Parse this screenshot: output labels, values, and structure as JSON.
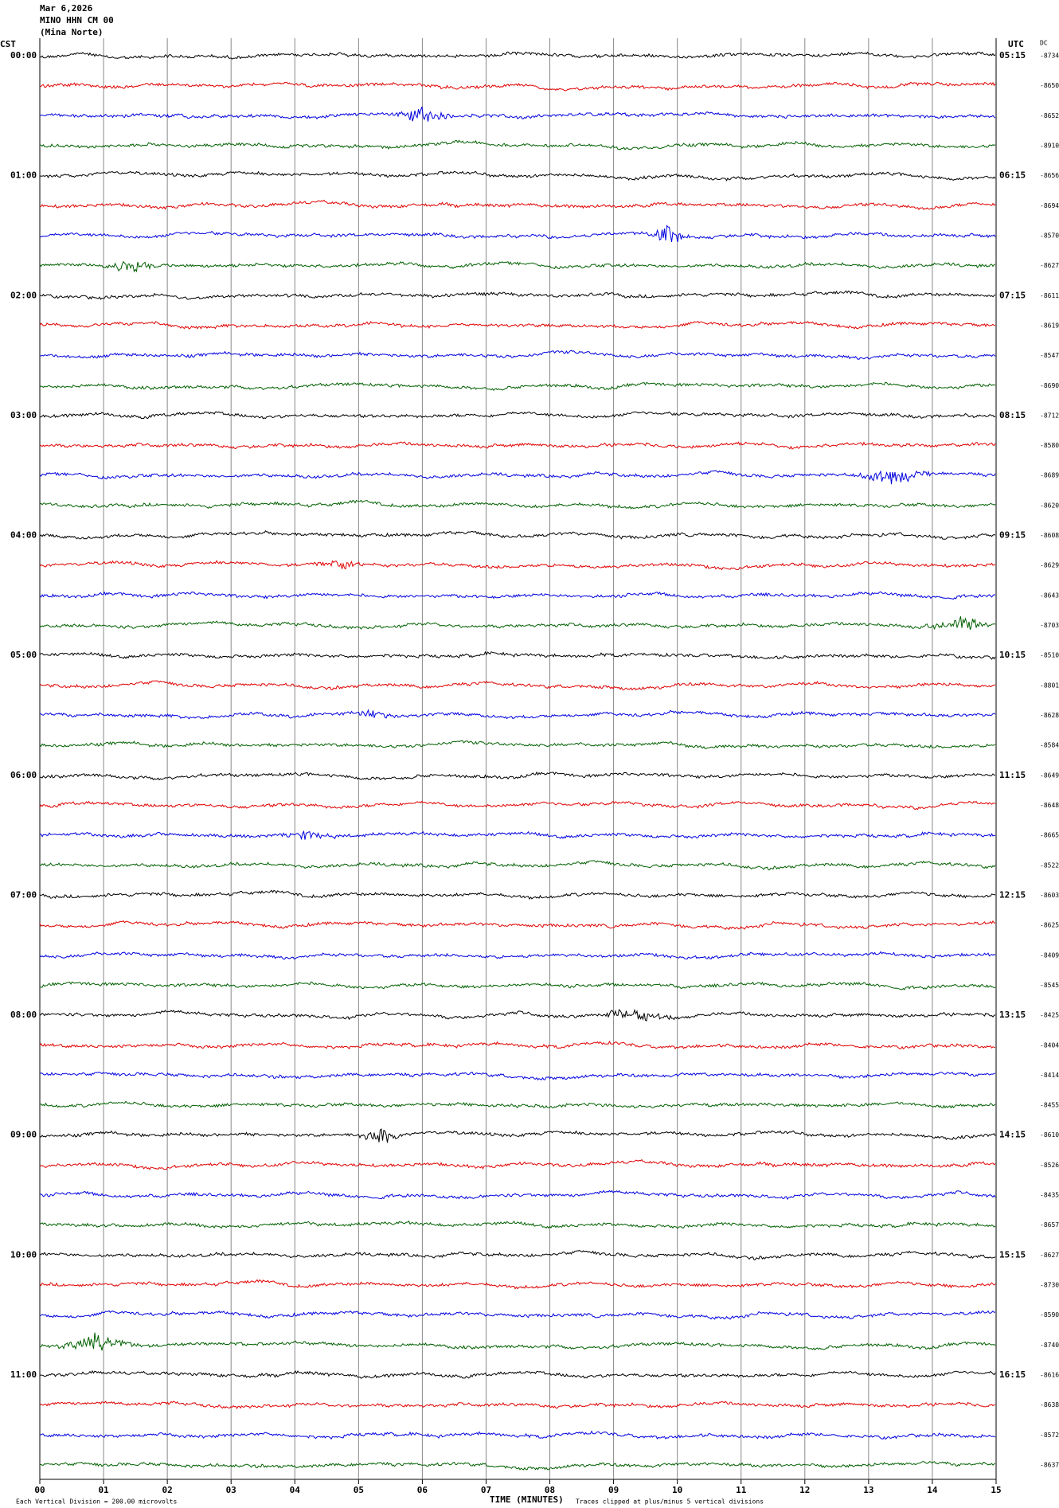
{
  "header": {
    "date": "Mar 6,2026",
    "station": "MINO HHN CM 00",
    "location": "(Mina Norte)"
  },
  "left_label": "CST",
  "right_label": "UTC",
  "dc_label": "DC",
  "hour_labels": [
    {
      "cst": "00:00",
      "utc": "05:15"
    },
    {
      "cst": "01:00",
      "utc": "06:15"
    },
    {
      "cst": "02:00",
      "utc": "07:15"
    },
    {
      "cst": "03:00",
      "utc": "08:15"
    },
    {
      "cst": "04:00",
      "utc": "09:15"
    },
    {
      "cst": "05:00",
      "utc": "10:15"
    },
    {
      "cst": "06:00",
      "utc": "11:15"
    },
    {
      "cst": "07:00",
      "utc": "12:15"
    },
    {
      "cst": "08:00",
      "utc": "13:15"
    },
    {
      "cst": "09:00",
      "utc": "14:15"
    },
    {
      "cst": "10:00",
      "utc": "15:15"
    },
    {
      "cst": "11:00",
      "utc": "16:15"
    }
  ],
  "dc_offsets": [
    "-8734",
    "-8650",
    "-8652",
    "-8910",
    "-8656",
    "-8694",
    "-8570",
    "-8627",
    "-8611",
    "-8619",
    "-8547",
    "-8690",
    "-8712",
    "-8580",
    "-8689",
    "-8620",
    "-8608",
    "-8629",
    "-8643",
    "-8703",
    "-8510",
    "-8801",
    "-8628",
    "-8584",
    "-8649",
    "-8648",
    "-8665",
    "-8522",
    "-8603",
    "-8625",
    "-8409",
    "-8545",
    "-8425",
    "-8404",
    "-8414",
    "-8455",
    "-8610",
    "-8526",
    "-8435",
    "-8657",
    "-8627",
    "-8730",
    "-8590",
    "-8740",
    "-8616",
    "-8638",
    "-8572",
    "-8637"
  ],
  "x_ticks": [
    "00",
    "01",
    "02",
    "03",
    "04",
    "05",
    "06",
    "07",
    "08",
    "09",
    "10",
    "11",
    "12",
    "13",
    "14",
    "15"
  ],
  "footer": {
    "scale_note": "Each Vertical Division =  200.00 microvolts",
    "x_axis_label": "TIME (MINUTES)",
    "clip_note": "Traces clipped at plus/minus 5 vertical divisions"
  }
}
